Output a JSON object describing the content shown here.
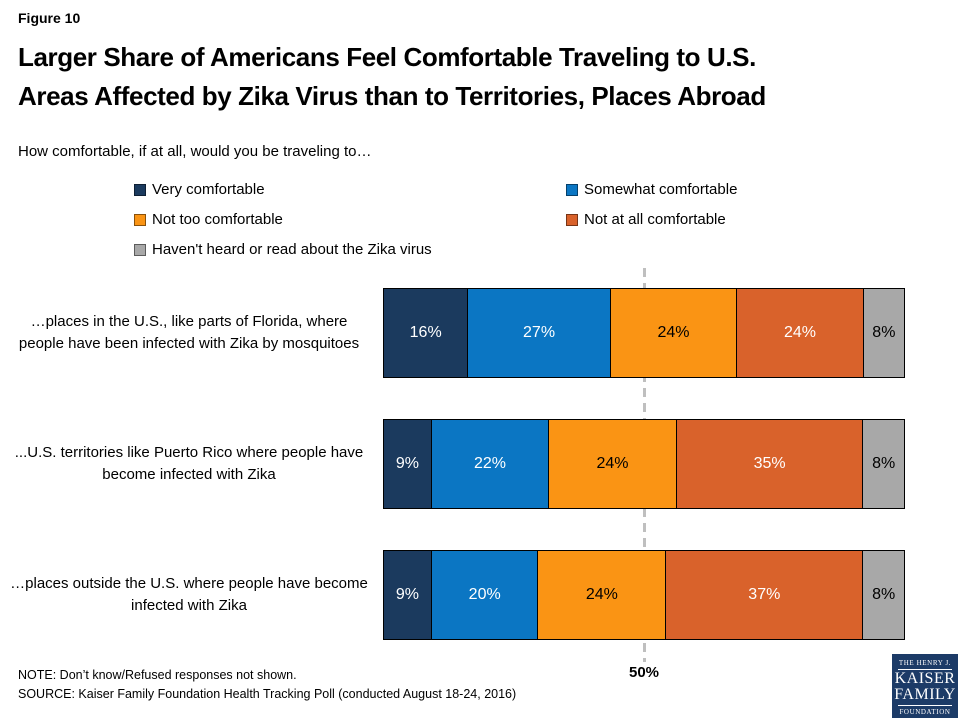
{
  "figure_label": "Figure 10",
  "title_line1": "Larger Share of Americans Feel Comfortable Traveling to U.S.",
  "title_line2": "Areas Affected by Zika Virus than to Territories, Places Abroad",
  "subtitle": "How comfortable, if at all, would you be traveling to…",
  "note": "NOTE: Don’t know/Refused responses not shown.",
  "source": "SOURCE: Kaiser Family Foundation Health Tracking Poll (conducted August 18-24, 2016)",
  "logo": {
    "line1": "THE HENRY J.",
    "line2": "KAISER",
    "line3": "FAMILY",
    "line4": "FOUNDATION"
  },
  "colors": {
    "very_comfortable": "#1B3A5E",
    "somewhat_comfortable": "#0B76C3",
    "not_too_comfortable": "#FA9414",
    "not_at_all_comfortable": "#D9622B",
    "havent_heard": "#A8A8A8",
    "reference_line": "#BFBFBF",
    "logo_navy": "#1C3B67"
  },
  "chart_data": {
    "type": "bar",
    "stacked": true,
    "orientation": "horizontal",
    "normalized_to_100pct": true,
    "categories": [
      "…places in the U.S., like parts of Florida, where people have been infected with Zika by mosquitoes",
      "...U.S. territories like Puerto Rico where people have become infected with Zika",
      "…places outside the U.S. where people have become infected with Zika"
    ],
    "series": [
      {
        "name": "Very comfortable",
        "color": "#1B3A5E",
        "label_color": "#FFFFFF",
        "values": [
          16,
          9,
          9
        ]
      },
      {
        "name": "Somewhat comfortable",
        "color": "#0B76C3",
        "label_color": "#FFFFFF",
        "values": [
          27,
          22,
          20
        ]
      },
      {
        "name": "Not too comfortable",
        "color": "#FA9414",
        "label_color": "#000000",
        "values": [
          24,
          24,
          24
        ]
      },
      {
        "name": "Not at all comfortable",
        "color": "#D9622B",
        "label_color": "#FFFFFF",
        "values": [
          24,
          35,
          37
        ]
      },
      {
        "name": "Haven't heard or read about the Zika virus",
        "color": "#A8A8A8",
        "label_color": "#000000",
        "values": [
          8,
          8,
          8
        ]
      }
    ],
    "value_suffix": "%",
    "reference_line": {
      "value": 50,
      "label": "50%"
    },
    "xlim": [
      0,
      100
    ],
    "legend_position": "top",
    "grid": false
  }
}
